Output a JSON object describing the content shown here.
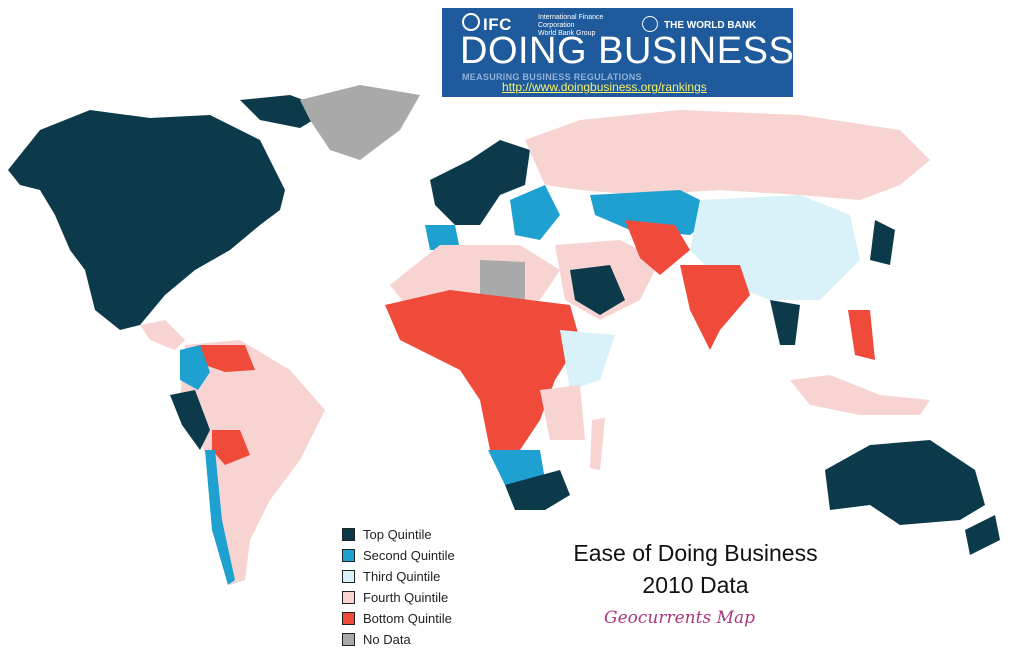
{
  "header": {
    "ifc": "IFC",
    "ifc_org": "International Finance Corporation",
    "ifc_group": "World Bank Group",
    "world_bank": "THE WORLD BANK",
    "title": "DOING BUSINESS",
    "subtitle": "MEASURING BUSINESS REGULATIONS",
    "url": "http://www.doingbusiness.org/rankings"
  },
  "map": {
    "title_line1": "Ease of Doing Business",
    "title_line2": "2010 Data",
    "credit": "Geocurrents Map"
  },
  "legend": [
    {
      "label": "Top Quintile",
      "color": "#0c3a4a"
    },
    {
      "label": "Second Quintile",
      "color": "#1ea1d1"
    },
    {
      "label": "Third Quintile",
      "color": "#d9f1f8"
    },
    {
      "label": "Fourth Quintile",
      "color": "#f7d3d2"
    },
    {
      "label": "Bottom Quintile",
      "color": "#f04a3b"
    },
    {
      "label": "No Data",
      "color": "#a9a9a9"
    }
  ]
}
